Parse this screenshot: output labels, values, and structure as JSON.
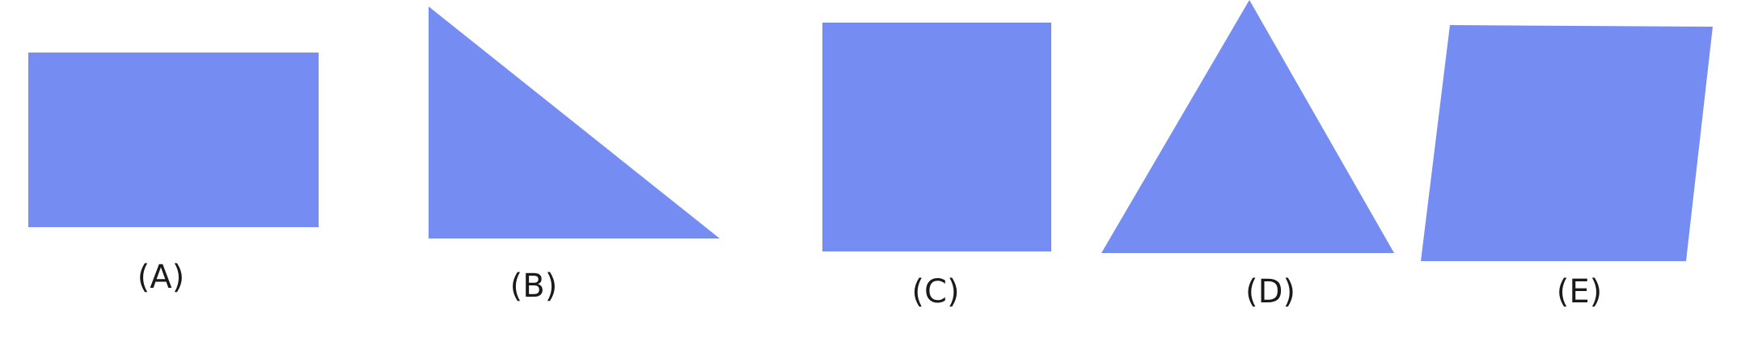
{
  "shape_color": "#758df2",
  "figures": [
    {
      "id": "A",
      "shape": "rectangle",
      "label": "(A)"
    },
    {
      "id": "B",
      "shape": "right-triangle",
      "label": "(B)"
    },
    {
      "id": "C",
      "shape": "square",
      "label": "(C)"
    },
    {
      "id": "D",
      "shape": "triangle",
      "label": "(D)"
    },
    {
      "id": "E",
      "shape": "parallelogram",
      "label": "(E)"
    }
  ]
}
